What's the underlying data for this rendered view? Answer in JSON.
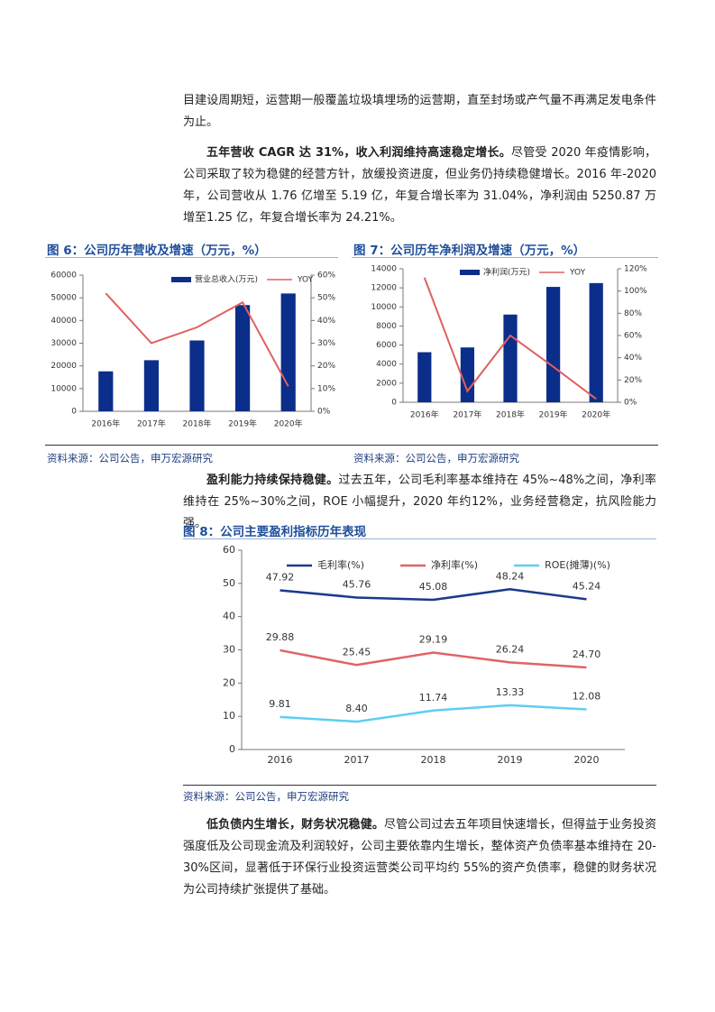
{
  "paragraphs": [
    {
      "text": "目建设周期短，运营期一般覆盖垃圾填埋场的运营期，直至封场或产气量不再满足发电条件为止。"
    },
    {
      "bold": "五年营收 CAGR 达 31%，收入利润维持高速稳定增长。",
      "text": "尽管受 2020 年疫情影响，公司采取了较为稳健的经营方针，放缓投资进度，但业务仍持续稳健增长。2016 年-2020 年，公司营收从 1.76 亿增至 5.19 亿，年复合增长率为 31.04%，净利润由 5250.87 万增至1.25 亿，年复合增长率为 24.21%。"
    },
    {
      "bold": "盈利能力持续保持稳健。",
      "text": "过去五年，公司毛利率基本维持在 45%~48%之间，净利率维持在 25%~30%之间，ROE 小幅提升，2020 年约12%，业务经营稳定，抗风险能力强。"
    },
    {
      "bold": "低负债内生增长，财务状况稳健。",
      "text": "尽管公司过去五年项目快速增长，但得益于业务投资强度低及公司现金流及利润较好，公司主要依靠内生增长，整体资产负债率基本维持在 20-30%区间，显著低于环保行业投资运营类公司平均约 55%的资产负债率，稳健的财务状况为公司持续扩张提供了基础。"
    }
  ],
  "chart_data": [
    {
      "type": "bar",
      "title": "图 6：公司历年营收及增速（万元，%）",
      "source": "资料来源：公司公告，申万宏源研究",
      "categories": [
        "2016年",
        "2017年",
        "2018年",
        "2019年",
        "2020年"
      ],
      "series": [
        {
          "name": "营业总收入(万元)",
          "color": "#0b2e8a",
          "values": [
            17600,
            22500,
            31200,
            46800,
            51900
          ]
        },
        {
          "name": "YOY",
          "color": "#e06060",
          "type": "line",
          "axis": "y2",
          "values": [
            52,
            30,
            37,
            48,
            11
          ]
        }
      ],
      "ylim": [
        0,
        60000
      ],
      "yticks": [
        0,
        10000,
        20000,
        30000,
        40000,
        50000,
        60000
      ],
      "y2lim": [
        0,
        60
      ],
      "y2ticks": [
        {
          "value": 0,
          "label": "0%"
        },
        {
          "value": 10,
          "label": "10%"
        },
        {
          "value": 20,
          "label": "20%"
        },
        {
          "value": 30,
          "label": "30%"
        },
        {
          "value": 40,
          "label": "40%"
        },
        {
          "value": 50,
          "label": "50%"
        },
        {
          "value": 60,
          "label": "60%"
        }
      ],
      "legend": "top"
    },
    {
      "type": "bar",
      "title": "图 7：公司历年净利润及增速（万元，%）",
      "source": "资料来源：公司公告，申万宏源研究",
      "categories": [
        "2016年",
        "2017年",
        "2018年",
        "2019年",
        "2020年"
      ],
      "series": [
        {
          "name": "净利润(万元)",
          "color": "#0b2e8a",
          "values": [
            5251,
            5750,
            9200,
            12100,
            12500
          ]
        },
        {
          "name": "YOY",
          "color": "#e06060",
          "type": "line",
          "axis": "y2",
          "values": [
            112,
            10,
            60,
            32,
            3
          ]
        }
      ],
      "ylim": [
        0,
        14000
      ],
      "yticks": [
        0,
        2000,
        4000,
        6000,
        8000,
        10000,
        12000,
        14000
      ],
      "y2lim": [
        0,
        120
      ],
      "y2ticks": [
        {
          "value": 0,
          "label": "0%"
        },
        {
          "value": 20,
          "label": "20%"
        },
        {
          "value": 40,
          "label": "40%"
        },
        {
          "value": 60,
          "label": "60%"
        },
        {
          "value": 80,
          "label": "80%"
        },
        {
          "value": 100,
          "label": "100%"
        },
        {
          "value": 120,
          "label": "120%"
        }
      ],
      "legend": "top"
    },
    {
      "type": "line",
      "title": "图 8：公司主要盈利指标历年表现",
      "source": "资料来源：公司公告，申万宏源研究",
      "categories": [
        "2016",
        "2017",
        "2018",
        "2019",
        "2020"
      ],
      "series": [
        {
          "name": "毛利率(%)",
          "color": "#1a3a8c",
          "values": [
            47.92,
            45.76,
            45.08,
            48.24,
            45.24
          ],
          "value_labels": [
            "47.92",
            "45.76",
            "45.08",
            "48.24",
            "45.24"
          ]
        },
        {
          "name": "净利率(%)",
          "color": "#e06466",
          "values": [
            29.88,
            25.45,
            29.19,
            26.24,
            24.7
          ],
          "value_labels": [
            "29.88",
            "25.45",
            "29.19",
            "26.24",
            "24.70"
          ]
        },
        {
          "name": "ROE(摊薄)(%)",
          "color": "#5fcdf2",
          "values": [
            9.81,
            8.4,
            11.74,
            13.33,
            12.08
          ],
          "value_labels": [
            "9.81",
            "8.40",
            "11.74",
            "13.33",
            "12.08"
          ]
        }
      ],
      "ylim": [
        0,
        60
      ],
      "yticks": [
        0,
        10,
        20,
        30,
        40,
        50,
        60
      ],
      "legend": "top"
    }
  ]
}
